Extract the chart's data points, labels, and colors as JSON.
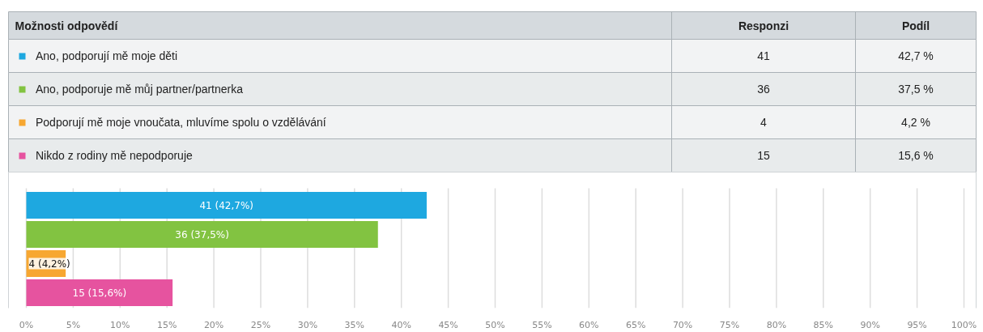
{
  "chart_data": {
    "type": "bar",
    "orientation": "horizontal",
    "categories": [
      null,
      null,
      null,
      null
    ],
    "series": [
      {
        "name": "Ano, podporují mě moje děti",
        "color": "#1ea8e0",
        "values": [
          42.7,
          null,
          null,
          null
        ],
        "value_labels": [
          "41 (42,7%)",
          null,
          null,
          null
        ]
      },
      {
        "name": "Ano, podporuje mě můj partner/partnerka",
        "color": "#82c341",
        "values": [
          null,
          37.5,
          null,
          null
        ],
        "value_labels": [
          null,
          "36 (37,5%)",
          null,
          null
        ]
      },
      {
        "name": "Podporují mě moje vnoučata, mluvíme spolu o vzdělávání",
        "color": "#f7a731",
        "values": [
          null,
          null,
          4.2,
          null
        ],
        "value_labels": [
          null,
          null,
          "4 (4,2%)",
          null
        ]
      },
      {
        "name": "Nikdo z rodiny mě nepodporuje",
        "color": "#e6539f",
        "values": [
          null,
          null,
          null,
          15.6
        ],
        "value_labels": [
          null,
          null,
          null,
          "15 (15,6%)"
        ]
      }
    ],
    "legend": "top",
    "annotations": [
      "Možnosti odpovědí",
      "Responzi",
      "Podíl",
      "41",
      "42,7 %",
      "36",
      "37,5 %",
      "4",
      "4,2 %",
      "15",
      "15,6 %"
    ],
    "xlim": [
      0,
      100
    ],
    "xticks": [
      {
        "value": 0,
        "label": "0%"
      },
      {
        "value": 5,
        "label": "5%"
      },
      {
        "value": 10,
        "label": "10%"
      },
      {
        "value": 15,
        "label": "15%"
      },
      {
        "value": 20,
        "label": "20%"
      },
      {
        "value": 25,
        "label": "25%"
      },
      {
        "value": 30,
        "label": "30%"
      },
      {
        "value": 35,
        "label": "35%"
      },
      {
        "value": 40,
        "label": "40%"
      },
      {
        "value": 45,
        "label": "45%"
      },
      {
        "value": 50,
        "label": "50%"
      },
      {
        "value": 55,
        "label": "55%"
      },
      {
        "value": 60,
        "label": "60%"
      },
      {
        "value": 65,
        "label": "65%"
      },
      {
        "value": 70,
        "label": "70%"
      },
      {
        "value": 75,
        "label": "75%"
      },
      {
        "value": 80,
        "label": "80%"
      },
      {
        "value": 85,
        "label": "85%"
      },
      {
        "value": 90,
        "label": "90%"
      },
      {
        "value": 95,
        "label": "95%"
      },
      {
        "value": 100,
        "label": "100%"
      }
    ],
    "grid": "x"
  }
}
